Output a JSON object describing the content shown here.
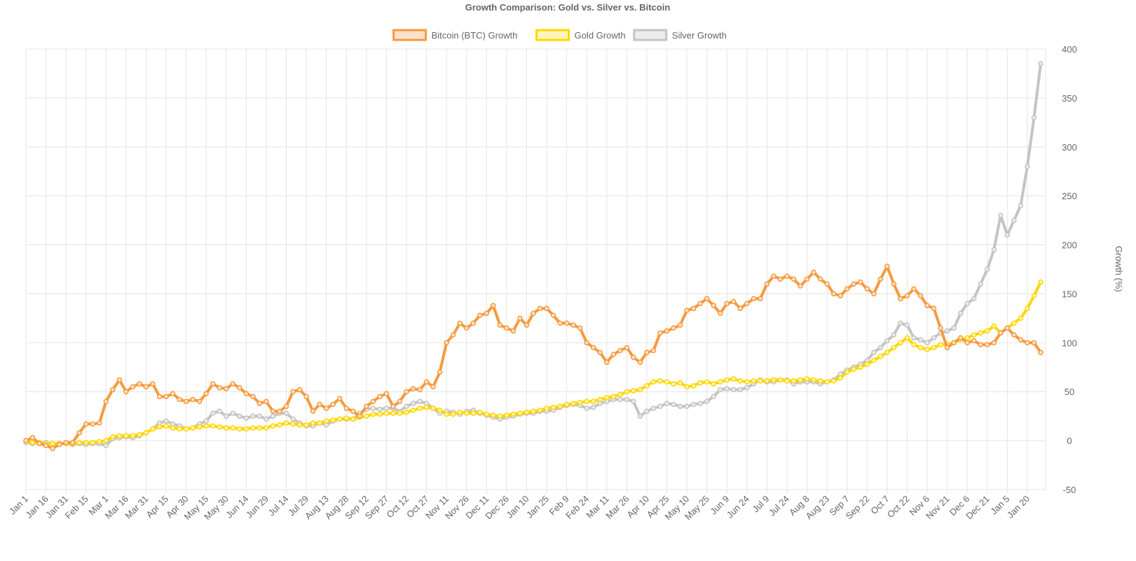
{
  "chart_data": {
    "type": "line",
    "title": "Growth Comparison: Gold vs. Silver vs. Bitcoin",
    "y_label": "Growth (%)",
    "y_axis_position": "right",
    "grid": true,
    "legend_position": "top",
    "ylim": [
      -50,
      400
    ],
    "yticks": [
      -50,
      0,
      50,
      100,
      150,
      200,
      250,
      300,
      350,
      400
    ],
    "categories": [
      "Jan 1",
      null,
      null,
      "Jan 16",
      null,
      null,
      "Jan 31",
      null,
      null,
      "Feb 15",
      null,
      null,
      "Mar 1",
      null,
      null,
      "Mar 16",
      null,
      null,
      "Mar 31",
      null,
      null,
      "Apr 15",
      null,
      null,
      "Apr 30",
      null,
      null,
      "May 15",
      null,
      null,
      "May 30",
      null,
      null,
      "Jun 14",
      null,
      null,
      "Jun 29",
      null,
      null,
      "Jul 14",
      null,
      null,
      "Jul 29",
      null,
      null,
      "Aug 13",
      null,
      null,
      "Aug 28",
      null,
      null,
      "Sep 12",
      null,
      null,
      "Sep 27",
      null,
      null,
      "Oct 12",
      null,
      null,
      "Oct 27",
      null,
      null,
      "Nov 11",
      null,
      null,
      "Nov 26",
      null,
      null,
      "Dec 11",
      null,
      null,
      "Dec 26",
      null,
      null,
      "Jan 10",
      null,
      null,
      "Jan 25",
      null,
      null,
      "Feb 9",
      null,
      null,
      "Feb 24",
      null,
      null,
      "Mar 11",
      null,
      null,
      "Mar 26",
      null,
      null,
      "Apr 10",
      null,
      null,
      "Apr 25",
      null,
      null,
      "May 10",
      null,
      null,
      "May 25",
      null,
      null,
      "Jun 9",
      null,
      null,
      "Jun 24",
      null,
      null,
      "Jul 9",
      null,
      null,
      "Jul 24",
      null,
      null,
      "Aug 8",
      null,
      null,
      "Aug 23",
      null,
      null,
      "Sep 7",
      null,
      null,
      "Sep 22",
      null,
      null,
      "Oct 7",
      null,
      null,
      "Oct 22",
      null,
      null,
      "Nov 6",
      null,
      null,
      "Nov 21",
      null,
      null,
      "Dec 6",
      null,
      null,
      "Dec 21",
      null,
      null,
      "Jan 5",
      null,
      null,
      "Jan 20",
      null,
      null
    ],
    "series": [
      {
        "name": "Bitcoin (BTC) Growth",
        "color": "#f79a3e",
        "fill": "#fde2c8",
        "values": [
          0,
          3,
          -3,
          -5,
          -8,
          -4,
          -2,
          -2,
          8,
          17,
          17,
          18,
          40,
          52,
          62,
          50,
          55,
          58,
          55,
          58,
          45,
          45,
          48,
          42,
          40,
          42,
          40,
          48,
          58,
          54,
          53,
          58,
          54,
          48,
          45,
          38,
          40,
          30,
          30,
          35,
          50,
          52,
          45,
          30,
          37,
          33,
          37,
          43,
          33,
          30,
          25,
          35,
          40,
          45,
          48,
          35,
          40,
          50,
          53,
          52,
          60,
          55,
          70,
          100,
          108,
          120,
          115,
          120,
          128,
          130,
          138,
          118,
          115,
          112,
          125,
          118,
          130,
          135,
          135,
          128,
          120,
          120,
          118,
          115,
          100,
          95,
          90,
          80,
          88,
          92,
          95,
          85,
          80,
          90,
          92,
          110,
          112,
          115,
          118,
          133,
          135,
          140,
          145,
          138,
          130,
          140,
          142,
          135,
          140,
          145,
          145,
          160,
          168,
          165,
          168,
          165,
          158,
          165,
          172,
          165,
          160,
          150,
          148,
          155,
          160,
          162,
          155,
          150,
          165,
          178,
          160,
          145,
          148,
          155,
          148,
          138,
          135,
          115,
          95,
          100,
          105,
          100,
          102,
          98,
          98,
          100,
          110,
          115,
          108,
          103,
          100,
          100,
          90
        ]
      },
      {
        "name": "Gold Growth",
        "color": "#ffd700",
        "fill": "#fff5b8",
        "values": [
          0,
          -2,
          -2,
          -3,
          -3,
          -3,
          -3,
          -3,
          -2,
          -2,
          -2,
          -1,
          0,
          4,
          5,
          5,
          5,
          6,
          8,
          12,
          14,
          15,
          13,
          12,
          12,
          13,
          14,
          15,
          15,
          14,
          13,
          13,
          12,
          12,
          13,
          13,
          13,
          15,
          16,
          18,
          17,
          16,
          16,
          18,
          18,
          20,
          21,
          22,
          23,
          22,
          24,
          25,
          27,
          27,
          28,
          28,
          28,
          29,
          31,
          33,
          34,
          33,
          31,
          27,
          27,
          29,
          28,
          28,
          29,
          27,
          26,
          25,
          26,
          27,
          28,
          29,
          30,
          31,
          33,
          34,
          35,
          37,
          38,
          39,
          40,
          40,
          42,
          44,
          45,
          47,
          50,
          51,
          52,
          56,
          60,
          61,
          60,
          58,
          59,
          55,
          56,
          59,
          60,
          58,
          60,
          62,
          63,
          61,
          60,
          61,
          61,
          61,
          62,
          62,
          61,
          61,
          62,
          63,
          62,
          61,
          60,
          61,
          64,
          70,
          73,
          75,
          78,
          82,
          86,
          90,
          95,
          100,
          105,
          98,
          95,
          93,
          95,
          98,
          98,
          100,
          103,
          105,
          108,
          110,
          112,
          117,
          110,
          115,
          120,
          125,
          135,
          148,
          162
        ]
      },
      {
        "name": "Silver Growth",
        "color": "#c4c4c4",
        "fill": "#ececec",
        "values": [
          -2,
          -3,
          -2,
          -2,
          -3,
          -3,
          -3,
          -4,
          -3,
          -4,
          -3,
          -3,
          -5,
          2,
          3,
          4,
          3,
          5,
          8,
          12,
          18,
          20,
          17,
          15,
          12,
          13,
          17,
          20,
          28,
          30,
          25,
          28,
          25,
          23,
          25,
          25,
          22,
          25,
          28,
          28,
          22,
          18,
          15,
          15,
          18,
          16,
          20,
          22,
          22,
          22,
          28,
          32,
          33,
          32,
          33,
          33,
          30,
          35,
          38,
          40,
          38,
          33,
          28,
          30,
          29,
          27,
          30,
          31,
          28,
          26,
          24,
          22,
          24,
          25,
          27,
          28,
          28,
          30,
          30,
          31,
          34,
          36,
          37,
          36,
          33,
          34,
          38,
          40,
          42,
          42,
          42,
          40,
          25,
          30,
          33,
          35,
          38,
          37,
          35,
          35,
          37,
          38,
          40,
          45,
          52,
          53,
          52,
          52,
          54,
          58,
          62,
          60,
          60,
          62,
          62,
          58,
          60,
          60,
          60,
          58,
          60,
          62,
          68,
          72,
          75,
          78,
          82,
          90,
          95,
          102,
          108,
          120,
          118,
          105,
          103,
          100,
          105,
          110,
          112,
          115,
          130,
          140,
          145,
          160,
          175,
          195,
          230,
          210,
          225,
          240,
          280,
          330,
          385
        ]
      }
    ]
  }
}
